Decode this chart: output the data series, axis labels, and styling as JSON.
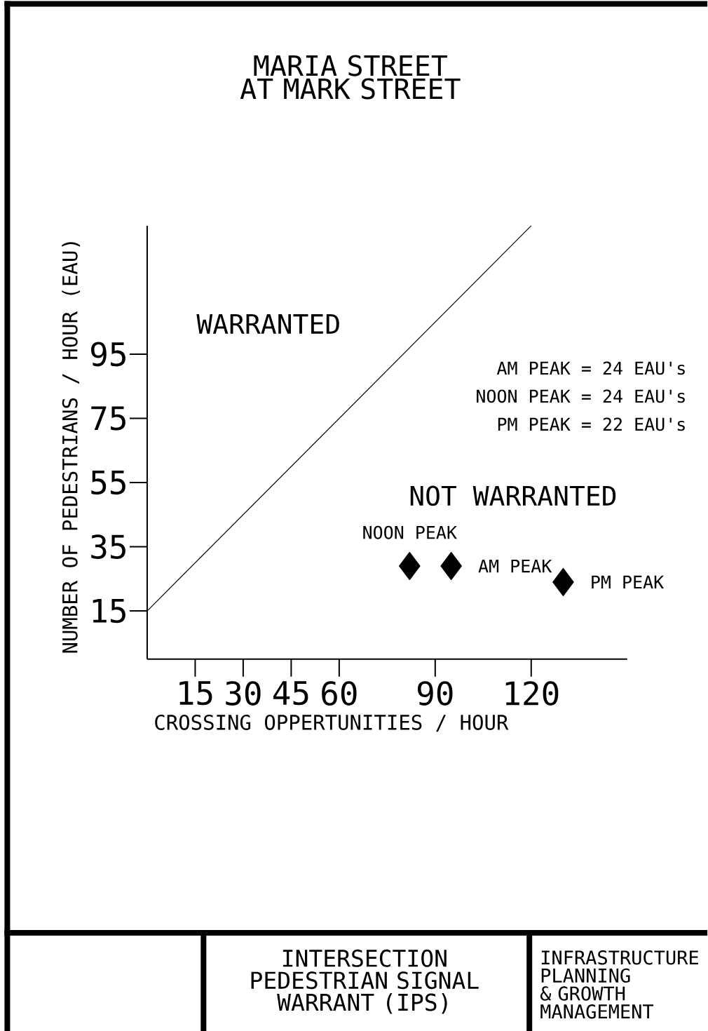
{
  "chart_data": {
    "type": "scatter",
    "title": "MARIA STREET AT MARK STREET",
    "xlabel": "CROSSING OPPERTUNITIES / HOUR",
    "ylabel": "NUMBER OF PEDESTRIANS / HOUR (EAU)",
    "series": [
      {
        "type": "line",
        "color": "#000000",
        "x": [
          0,
          120
        ],
        "values": [
          15,
          135
        ]
      },
      {
        "type": "scatter",
        "color": "#000000",
        "marker": "diamond",
        "x": [
          82,
          95,
          130
        ],
        "values": [
          29,
          29,
          24
        ]
      }
    ],
    "xlim": [
      0,
      150
    ],
    "ylim": [
      0,
      135
    ],
    "xticks": [
      15,
      30,
      45,
      60,
      90,
      120
    ],
    "yticks": [
      15,
      35,
      55,
      75,
      95
    ],
    "grid": false,
    "annotations": [
      {
        "text": "NOON PEAK",
        "x": 82,
        "y": 29
      },
      {
        "text": "AM PEAK",
        "x": 95,
        "y": 29
      },
      {
        "text": "PM PEAK",
        "x": 130,
        "y": 24
      },
      "WARRANTED",
      "NOT WARRANTED",
      "AM PEAK = 24 EAU's",
      "NOON PEAK = 24 EAU's",
      "PM PEAK = 22 EAU's",
      "INTERSECTION PEDESTRIAN SIGNAL WARRANT (IPS)",
      "INFRASTRUCTURE PLANNING & GROWTH MANAGEMENT"
    ]
  }
}
